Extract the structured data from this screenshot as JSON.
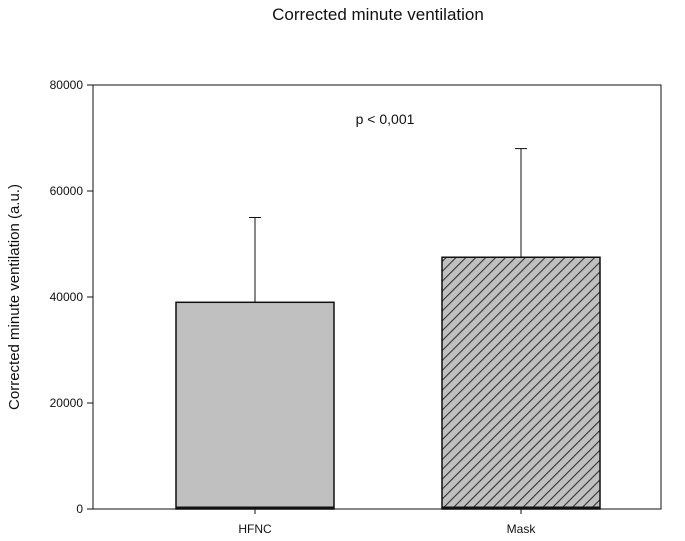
{
  "chart_data": {
    "type": "bar",
    "title": "Corrected minute ventilation",
    "xlabel": "",
    "ylabel": "Corrected minute ventilation (a.u.)",
    "categories": [
      "HFNC",
      "Mask"
    ],
    "values": [
      39000,
      47500
    ],
    "error_upper": [
      55000,
      68000
    ],
    "ylim": [
      0,
      80000
    ],
    "yticks": [
      0,
      20000,
      40000,
      60000,
      80000
    ],
    "ytick_labels": [
      "0",
      "20000",
      "40000",
      "60000",
      "80000"
    ],
    "annotation": "p < 0,001",
    "grid": false,
    "bar_styles": [
      {
        "fill": "#c0c0c0",
        "pattern": "solid"
      },
      {
        "fill": "#c0c0c0",
        "pattern": "diagonal-hatch"
      }
    ],
    "colors": {
      "bar": "#c0c0c0",
      "hatch": "#333333",
      "axis": "#111111"
    }
  }
}
